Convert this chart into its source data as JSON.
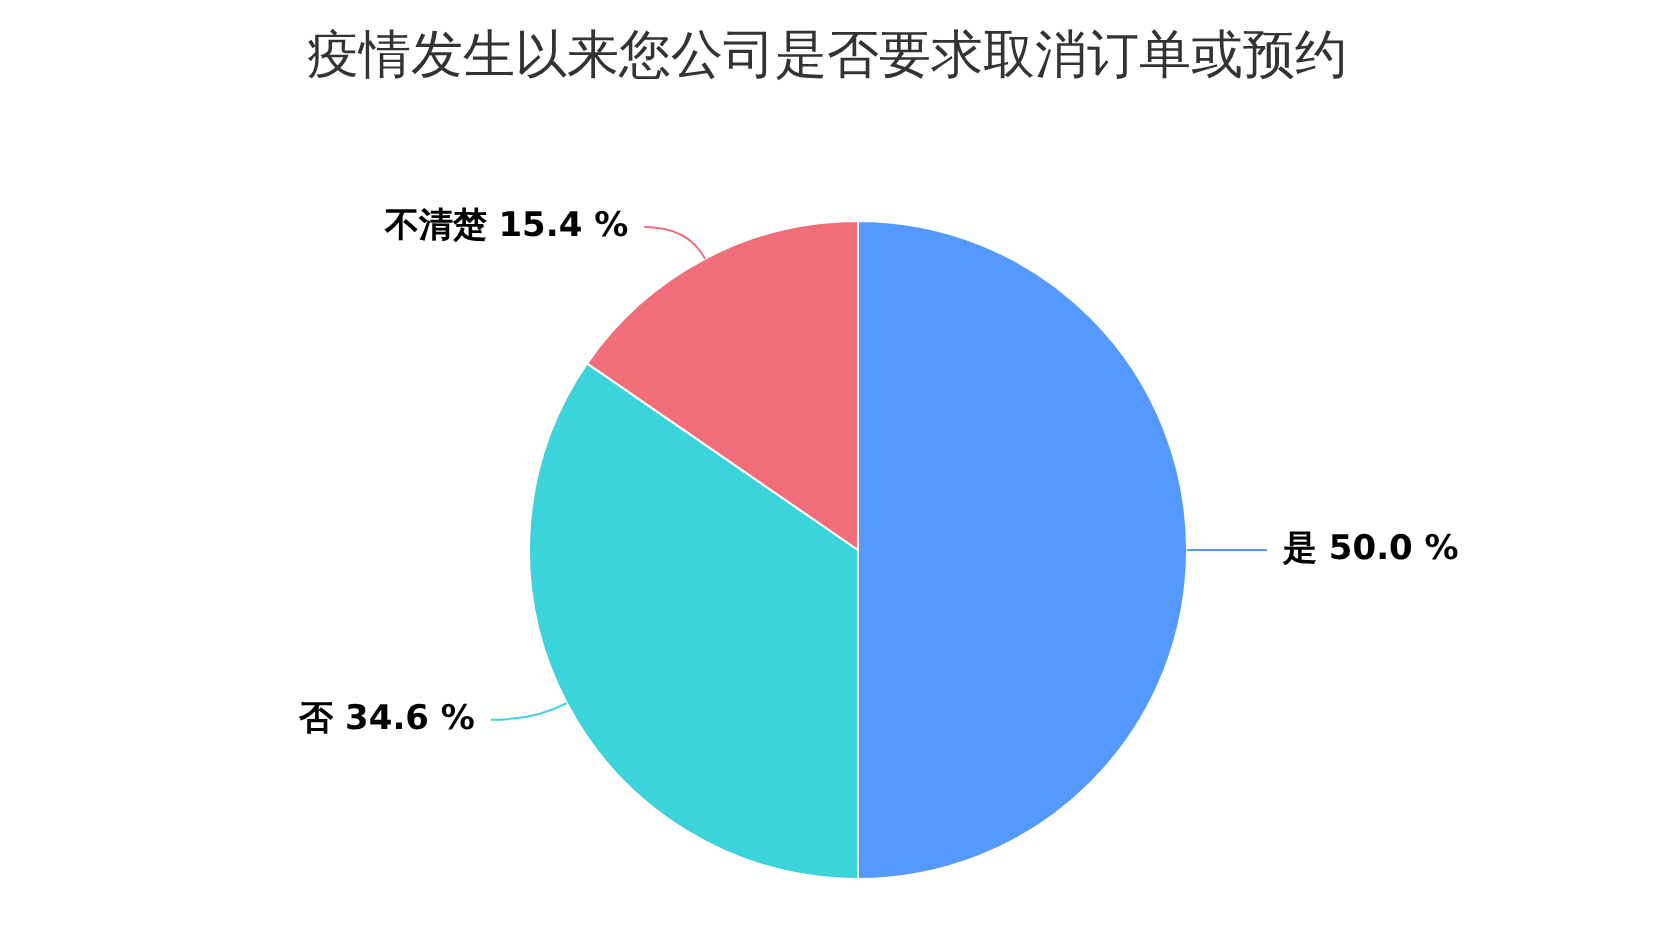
{
  "chart_data": {
    "type": "pie",
    "title": "疫情发生以来您公司是否要求取消订单或预约",
    "categories": [
      "是",
      "否",
      "不清楚"
    ],
    "values": [
      50.0,
      34.6,
      15.4
    ],
    "value_labels": [
      "50.0 %",
      "34.6 %",
      "15.4 %"
    ],
    "colors": [
      "#5599ff",
      "#3ad4da",
      "#f26d7a"
    ],
    "legend": false
  }
}
